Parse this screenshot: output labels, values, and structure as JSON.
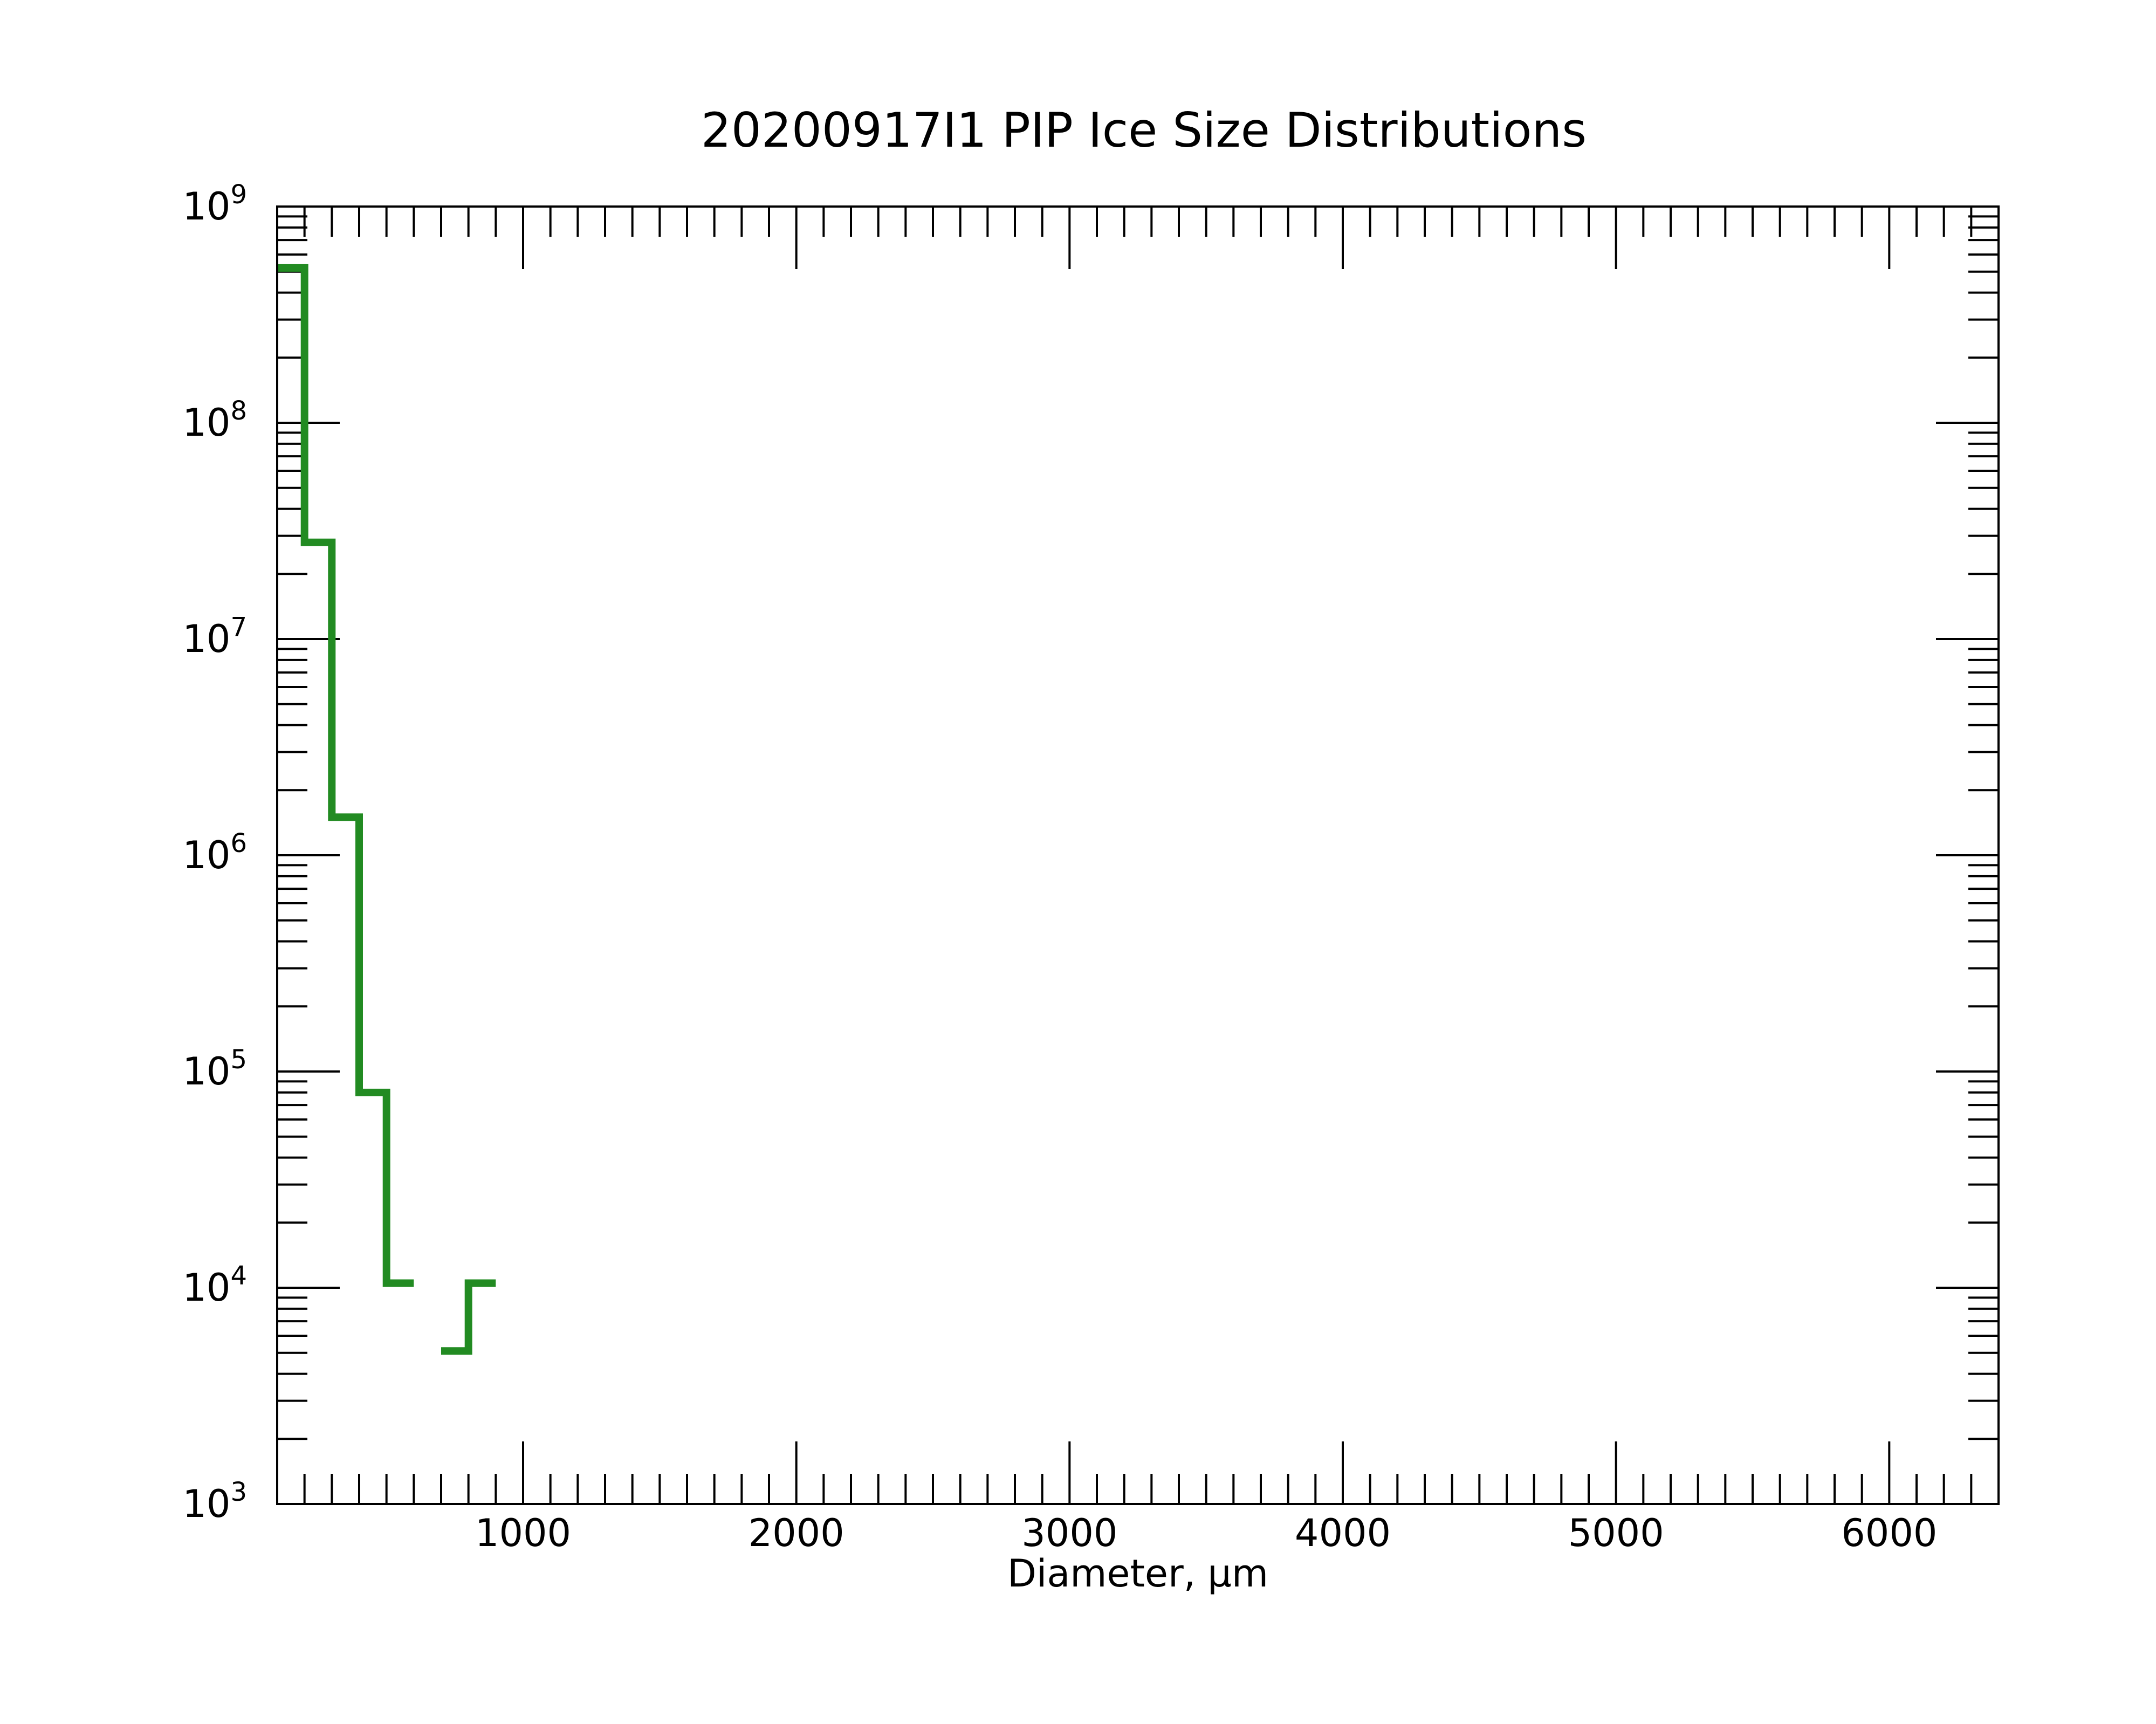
{
  "chart_data": {
    "type": "line",
    "title": "20200917I1 PIP Ice Size Distributions",
    "xlabel": "Diameter, µm",
    "ylabel": "",
    "xlim": [
      100,
      6400
    ],
    "ylim": [
      1000,
      1000000000
    ],
    "yscale": "log",
    "grid": false,
    "xticks": [
      1000,
      2000,
      3000,
      4000,
      5000,
      6000
    ],
    "xtick_labels": [
      "1000",
      "2000",
      "3000",
      "4000",
      "5000",
      "6000"
    ],
    "yticks": [
      {
        "base": "10",
        "exp": "3",
        "value": 1000
      },
      {
        "base": "10",
        "exp": "4",
        "value": 10000
      },
      {
        "base": "10",
        "exp": "5",
        "value": 100000
      },
      {
        "base": "10",
        "exp": "6",
        "value": 1000000
      },
      {
        "base": "10",
        "exp": "7",
        "value": 10000000
      },
      {
        "base": "10",
        "exp": "8",
        "value": 100000000
      },
      {
        "base": "10",
        "exp": "9",
        "value": 1000000000
      }
    ],
    "series": [
      {
        "color": "#228b22",
        "drawstyle": "steps",
        "bins": [
          {
            "x0": 100,
            "x1": 200,
            "y": 520000000
          },
          {
            "x0": 200,
            "x1": 300,
            "y": 28000000
          },
          {
            "x0": 300,
            "x1": 400,
            "y": 1500000
          },
          {
            "x0": 400,
            "x1": 500,
            "y": 80000
          },
          {
            "x0": 500,
            "x1": 600,
            "y": 10500
          },
          {
            "x0": 600,
            "x1": 700,
            "y": null
          },
          {
            "x0": 700,
            "x1": 800,
            "y": 5100
          },
          {
            "x0": 800,
            "x1": 900,
            "y": 10500
          }
        ]
      }
    ]
  }
}
